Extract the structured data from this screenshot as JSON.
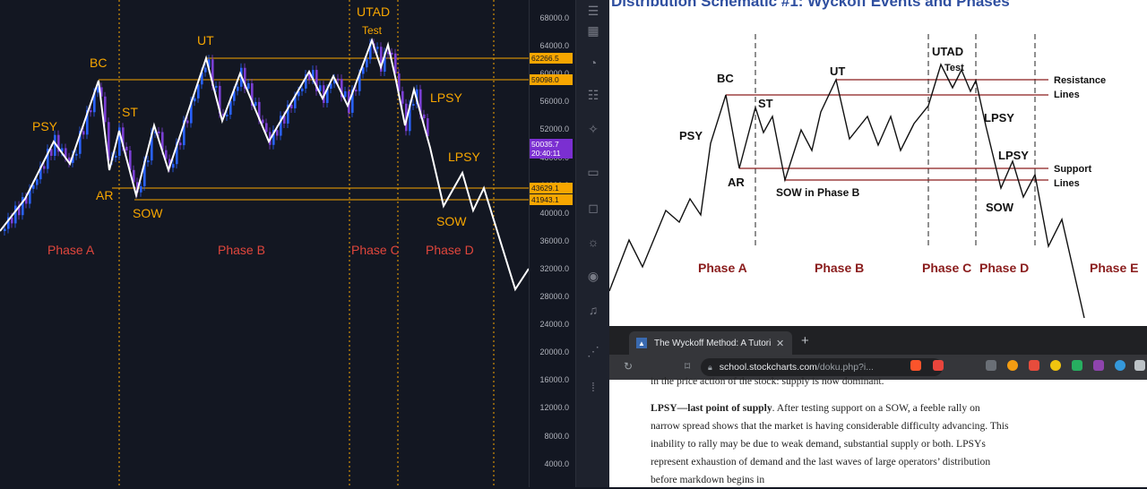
{
  "chart": {
    "phase_labels": [
      "Phase A",
      "Phase B",
      "Phase C",
      "Phase D"
    ],
    "event_labels": {
      "psy": "PSY",
      "bc": "BC",
      "st": "ST",
      "ar": "AR",
      "sow": "SOW",
      "ut": "UT",
      "utad": "UTAD",
      "test": "Test",
      "lpsy1": "LPSY",
      "lpsy2": "LPSY",
      "sow2": "SOW"
    },
    "price_ticks": [
      "68000.0",
      "64000.0",
      "60000.0",
      "56000.0",
      "52000.0",
      "48000.0",
      "44000.0",
      "40000.0",
      "36000.0",
      "32000.0",
      "28000.0",
      "24000.0",
      "20000.0",
      "16000.0",
      "12000.0",
      "8000.0",
      "4000.0"
    ],
    "price_tags": {
      "resistance_high": "62266.5",
      "resistance_low": "59098.0",
      "current_price": "50035.7",
      "countdown": "20:40:11",
      "support_high": "43629.1",
      "support_low": "41943.1"
    },
    "colors": {
      "orange": "#f7a600",
      "red": "#e0463c",
      "bull": "#2962ff",
      "bear": "#7b3fd4",
      "line": "#ffffff"
    }
  },
  "schematic": {
    "title": "Distribution Schematic #1: Wyckoff Events and Phases",
    "labels": {
      "bc": "BC",
      "psy": "PSY",
      "ar": "AR",
      "st": "ST",
      "sow_b": "SOW in Phase B",
      "ut": "UT",
      "utad": "UTAD",
      "test": "Test",
      "lpsy1": "LPSY",
      "lpsy2": "LPSY",
      "sow": "SOW",
      "resistance": "Resistance",
      "resistance2": "Lines",
      "support": "Support",
      "support2": "Lines"
    },
    "phases": [
      "Phase A",
      "Phase B",
      "Phase C",
      "Phase D",
      "Phase E"
    ]
  },
  "browser": {
    "tab_title": "The Wyckoff Method: A Tutorial",
    "url_domain": "school.stockcharts.com",
    "url_path": "/doku.php?i...",
    "article_top": "in the price action of the stock: supply is now dominant.",
    "lpsy_term": "LPSY—last point of supply",
    "article_body": ". After testing support on a SOW, a feeble rally on narrow spread shows that the market is having considerable difficulty advancing. This inability to rally may be due to weak demand, substantial supply or both. LPSYs represent exhaustion of demand and the last waves of large operators’ distribution before markdown begins in"
  }
}
